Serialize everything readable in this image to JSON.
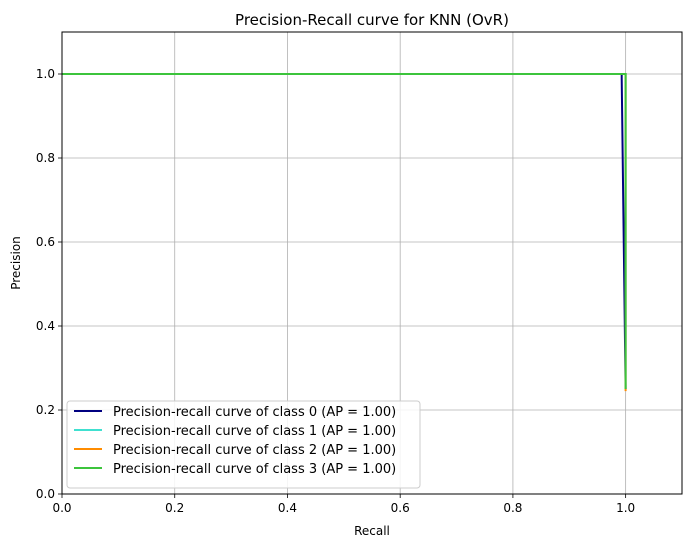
{
  "chart_data": {
    "type": "line",
    "title": "Precision-Recall curve for KNN (OvR)",
    "xlabel": "Recall",
    "ylabel": "Precision",
    "xlim": [
      0.0,
      1.1
    ],
    "ylim": [
      0.0,
      1.1
    ],
    "xticks": [
      "0.0",
      "0.2",
      "0.4",
      "0.6",
      "0.8",
      "1.0"
    ],
    "yticks": [
      "0.0",
      "0.2",
      "0.4",
      "0.6",
      "0.8",
      "1.0"
    ],
    "grid": true,
    "legend_position": "lower-left",
    "series": [
      {
        "name": "Precision-recall curve of class 0 (AP = 1.00)",
        "color": "#000080",
        "x": [
          0.0,
          0.993,
          0.993,
          1.0
        ],
        "y": [
          1.0,
          1.0,
          0.99,
          0.25
        ]
      },
      {
        "name": "Precision-recall curve of class 1 (AP = 1.00)",
        "color": "#40E0D0",
        "x": [
          0.0,
          1.0,
          1.0
        ],
        "y": [
          1.0,
          1.0,
          0.25
        ]
      },
      {
        "name": "Precision-recall curve of class 2 (AP = 1.00)",
        "color": "#FF8C00",
        "x": [
          0.0,
          1.0,
          1.0
        ],
        "y": [
          1.0,
          1.0,
          0.245
        ]
      },
      {
        "name": "Precision-recall curve of class 3 (AP = 1.00)",
        "color": "#3CC43C",
        "x": [
          0.0,
          1.0,
          1.0
        ],
        "y": [
          1.0,
          1.0,
          0.25
        ]
      }
    ]
  }
}
